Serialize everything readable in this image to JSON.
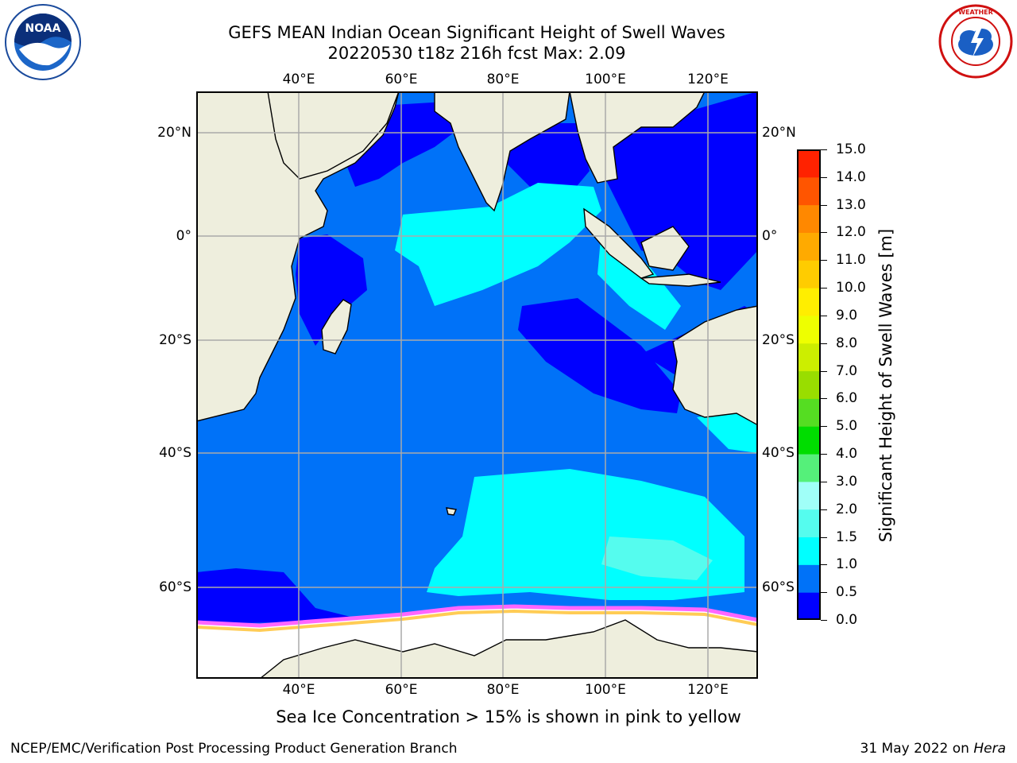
{
  "header": {
    "title_line1": "GEFS MEAN Indian Ocean Significant Height of Swell Waves",
    "title_line2": "20220530 t18z 216h fcst   Max: 2.09"
  },
  "logos": {
    "left": {
      "name": "noaa-logo",
      "text": "NOAA"
    },
    "right": {
      "name": "national-weather-service-logo",
      "text": "NATIONAL WEATHER SERVICE"
    }
  },
  "map": {
    "lon_ticks": [
      "40°E",
      "60°E",
      "80°E",
      "100°E",
      "120°E"
    ],
    "lat_ticks": [
      "20°N",
      "0°",
      "20°S",
      "40°S",
      "60°S"
    ],
    "lon_range": [
      20,
      130
    ],
    "lat_range": [
      -78,
      28
    ],
    "colors": {
      "land": "#eeeedd",
      "swell_0_0_5": "#0000ff",
      "swell_0_5_1_0": "#0072f8",
      "swell_1_0_1_5": "#00ffff",
      "swell_1_5_2_0": "#55fcee",
      "sea_ice": "#ffffff",
      "sea_ice_edge": "#ff66ff",
      "sea_ice_yellow": "#ffcc55",
      "grid": "#aaaaaa"
    }
  },
  "colorbar": {
    "label": "Significant Height of Swell Waves [m]",
    "ticks": [
      "0.0",
      "0.5",
      "1.0",
      "1.5",
      "2.0",
      "3.0",
      "4.0",
      "5.0",
      "6.0",
      "7.0",
      "8.0",
      "9.0",
      "10.0",
      "11.0",
      "12.0",
      "13.0",
      "14.0",
      "15.0"
    ],
    "colors": [
      "#0000ff",
      "#0072f8",
      "#00ffff",
      "#55fcee",
      "#a0fff8",
      "#55f07a",
      "#00dd00",
      "#55dd22",
      "#99dd00",
      "#ccee00",
      "#eeff00",
      "#ffee00",
      "#ffcc00",
      "#ffaa00",
      "#ff8800",
      "#ff5500",
      "#ff2200"
    ]
  },
  "note": "Sea Ice Concentration > 15% is shown in pink to yellow",
  "footer": {
    "left": "NCEP/EMC/Verification Post Processing Product Generation Branch",
    "right_prefix": "31 May 2022 on ",
    "right_host": "Hera"
  }
}
